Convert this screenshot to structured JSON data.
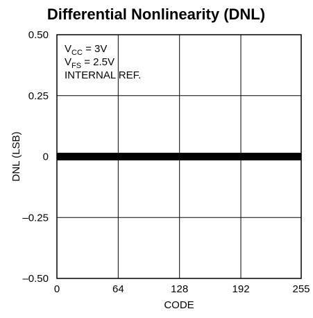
{
  "chart_data": {
    "type": "line",
    "title": "Differential Nonlinearity (DNL)",
    "xlabel": "CODE",
    "ylabel": "DNL (LSB)",
    "xlim": [
      0,
      255
    ],
    "ylim": [
      -0.5,
      0.5
    ],
    "x_ticks": [
      0,
      64,
      128,
      192,
      255
    ],
    "y_ticks": [
      0.5,
      0.25,
      0,
      -0.25,
      -0.5
    ],
    "x_tick_labels": [
      "0",
      "64",
      "128",
      "192",
      "255"
    ],
    "y_tick_labels": [
      "0.50",
      "0.25",
      "0",
      "–0.25",
      "–0.50"
    ],
    "grid": true,
    "annotations": [
      {
        "main": "V",
        "sub": "CC",
        "rest": " = 3V"
      },
      {
        "main": "V",
        "sub": "FS",
        "rest": " = 2.5V"
      },
      {
        "main": "INTERNAL REF.",
        "sub": "",
        "rest": ""
      }
    ],
    "series": [
      {
        "x_start": 0,
        "x_end": 255,
        "y_min": -0.01,
        "y_max": 0.01,
        "color": "#000000"
      }
    ]
  }
}
